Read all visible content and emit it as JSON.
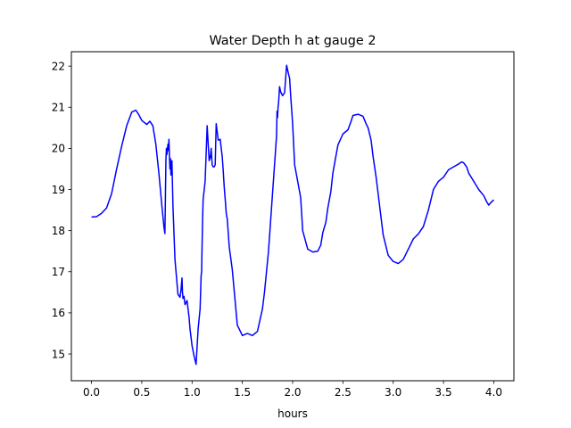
{
  "chart_data": {
    "type": "line",
    "title": "Water Depth h at gauge 2",
    "xlabel": "hours",
    "ylabel": "",
    "xlim": [
      -0.2,
      4.2
    ],
    "ylim": [
      14.35,
      22.35
    ],
    "xticks": [
      0.0,
      0.5,
      1.0,
      1.5,
      2.0,
      2.5,
      3.0,
      3.5,
      4.0
    ],
    "xtick_labels": [
      "0.0",
      "0.5",
      "1.0",
      "1.5",
      "2.0",
      "2.5",
      "3.0",
      "3.5",
      "4.0"
    ],
    "yticks": [
      15,
      16,
      17,
      18,
      19,
      20,
      21,
      22
    ],
    "ytick_labels": [
      "15",
      "16",
      "17",
      "18",
      "19",
      "20",
      "21",
      "22"
    ],
    "grid": false,
    "legend": "none",
    "series": [
      {
        "color": "#0000ff",
        "x": [
          0.0,
          0.05,
          0.1,
          0.15,
          0.2,
          0.25,
          0.3,
          0.35,
          0.4,
          0.44,
          0.47,
          0.5,
          0.55,
          0.58,
          0.61,
          0.64,
          0.67,
          0.7,
          0.72,
          0.73,
          0.74,
          0.745,
          0.75,
          0.76,
          0.765,
          0.77,
          0.775,
          0.78,
          0.785,
          0.79,
          0.8,
          0.81,
          0.83,
          0.86,
          0.88,
          0.89,
          0.9,
          0.905,
          0.91,
          0.92,
          0.93,
          0.94,
          0.95,
          0.96,
          0.97,
          0.98,
          1.0,
          1.02,
          1.04,
          1.06,
          1.08,
          1.09,
          1.095,
          1.1,
          1.105,
          1.11,
          1.13,
          1.15,
          1.17,
          1.175,
          1.18,
          1.19,
          1.2,
          1.21,
          1.22,
          1.23,
          1.24,
          1.26,
          1.28,
          1.29,
          1.295,
          1.3,
          1.31,
          1.32,
          1.33,
          1.34,
          1.35,
          1.37,
          1.4,
          1.45,
          1.5,
          1.55,
          1.6,
          1.65,
          1.7,
          1.72,
          1.74,
          1.76,
          1.78,
          1.8,
          1.82,
          1.83,
          1.84,
          1.845,
          1.85,
          1.855,
          1.86,
          1.87,
          1.88,
          1.9,
          1.92,
          1.94,
          1.96,
          1.97,
          1.98,
          2.0,
          2.02,
          2.05,
          2.08,
          2.1,
          2.15,
          2.2,
          2.25,
          2.28,
          2.3,
          2.33,
          2.35,
          2.38,
          2.4,
          2.45,
          2.5,
          2.55,
          2.58,
          2.6,
          2.65,
          2.7,
          2.73,
          2.75,
          2.78,
          2.8,
          2.83,
          2.87,
          2.9,
          2.95,
          3.0,
          3.05,
          3.1,
          3.15,
          3.2,
          3.25,
          3.3,
          3.35,
          3.4,
          3.45,
          3.5,
          3.55,
          3.6,
          3.65,
          3.68,
          3.7,
          3.73,
          3.75,
          3.8,
          3.85,
          3.9,
          3.93,
          3.95,
          3.97,
          4.0
        ],
        "y": [
          18.33,
          18.34,
          18.42,
          18.55,
          18.9,
          19.5,
          20.05,
          20.55,
          20.88,
          20.93,
          20.82,
          20.68,
          20.58,
          20.66,
          20.55,
          20.1,
          19.4,
          18.6,
          18.1,
          17.93,
          19.7,
          20.0,
          19.85,
          20.1,
          19.95,
          20.22,
          19.8,
          19.5,
          19.75,
          19.35,
          19.7,
          18.6,
          17.3,
          16.45,
          16.38,
          16.55,
          16.85,
          16.5,
          16.35,
          16.4,
          16.2,
          16.25,
          16.3,
          16.1,
          15.9,
          15.6,
          15.2,
          14.95,
          14.75,
          15.6,
          16.1,
          16.9,
          17.0,
          17.7,
          18.3,
          18.75,
          19.2,
          20.55,
          19.7,
          19.8,
          19.75,
          20.0,
          19.6,
          19.55,
          19.55,
          19.6,
          20.6,
          20.2,
          20.22,
          20.0,
          19.9,
          19.8,
          19.45,
          19.05,
          18.75,
          18.42,
          18.28,
          17.6,
          17.05,
          15.7,
          15.45,
          15.5,
          15.45,
          15.55,
          16.1,
          16.5,
          17.0,
          17.5,
          18.2,
          18.9,
          19.6,
          19.95,
          20.3,
          20.9,
          20.75,
          21.0,
          21.1,
          21.5,
          21.38,
          21.28,
          21.35,
          22.02,
          21.8,
          21.7,
          21.3,
          20.6,
          19.6,
          19.2,
          18.8,
          18.0,
          17.55,
          17.48,
          17.5,
          17.65,
          17.95,
          18.2,
          18.55,
          18.95,
          19.4,
          20.08,
          20.35,
          20.45,
          20.65,
          20.8,
          20.83,
          20.78,
          20.6,
          20.5,
          20.2,
          19.8,
          19.3,
          18.5,
          17.9,
          17.4,
          17.25,
          17.2,
          17.3,
          17.55,
          17.8,
          17.92,
          18.1,
          18.5,
          19.0,
          19.2,
          19.3,
          19.48,
          19.55,
          19.62,
          19.67,
          19.65,
          19.55,
          19.4,
          19.2,
          19.0,
          18.85,
          18.7,
          18.62,
          18.68,
          18.75
        ]
      }
    ]
  }
}
